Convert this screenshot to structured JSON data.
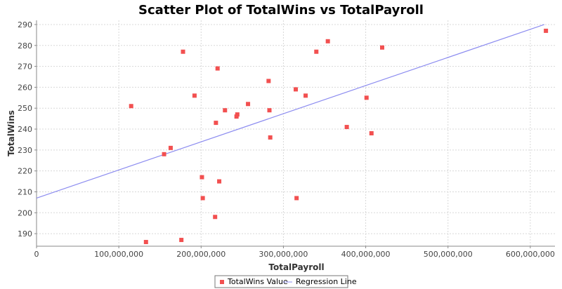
{
  "colors": {
    "points": "#f25050",
    "regression": "#8c8cf0",
    "grid": "#d8d8d8",
    "axis": "#888888"
  },
  "chart_data": {
    "type": "scatter",
    "title": "Scatter Plot of TotalWins vs TotalPayroll",
    "xlabel": "TotalPayroll",
    "ylabel": "TotalWins",
    "xlim": [
      0,
      630000000
    ],
    "ylim": [
      184,
      292
    ],
    "grid": true,
    "legend_placement": "bottom-center",
    "x_ticks": [
      {
        "value": 0,
        "label": "0"
      },
      {
        "value": 100000000,
        "label": "100,000,000"
      },
      {
        "value": 200000000,
        "label": "200,000,000"
      },
      {
        "value": 300000000,
        "label": "300,000,000"
      },
      {
        "value": 400000000,
        "label": "400,000,000"
      },
      {
        "value": 500000000,
        "label": "500,000,000"
      },
      {
        "value": 600000000,
        "label": "600,000,000"
      }
    ],
    "y_ticks": [
      {
        "value": 190,
        "label": "190"
      },
      {
        "value": 200,
        "label": "200"
      },
      {
        "value": 210,
        "label": "210"
      },
      {
        "value": 220,
        "label": "220"
      },
      {
        "value": 230,
        "label": "230"
      },
      {
        "value": 240,
        "label": "240"
      },
      {
        "value": 250,
        "label": "250"
      },
      {
        "value": 260,
        "label": "260"
      },
      {
        "value": 270,
        "label": "270"
      },
      {
        "value": 280,
        "label": "280"
      },
      {
        "value": 290,
        "label": "290"
      }
    ],
    "series": [
      {
        "name": "TotalWins Value",
        "kind": "points",
        "x": [
          115000000,
          133000000,
          155000000,
          163000000,
          176000000,
          178000000,
          192000000,
          201000000,
          202000000,
          217000000,
          218000000,
          220000000,
          222000000,
          229000000,
          243000000,
          244000000,
          257000000,
          282000000,
          283000000,
          284000000,
          315000000,
          316000000,
          327000000,
          340000000,
          354000000,
          377000000,
          401000000,
          407000000,
          420000000,
          619000000
        ],
        "y": [
          251,
          186,
          228,
          231,
          187,
          277,
          256,
          217,
          207,
          198,
          243,
          269,
          215,
          249,
          246,
          247,
          252,
          263,
          249,
          236,
          259,
          207,
          256,
          277,
          282,
          241,
          255,
          238,
          279,
          287
        ]
      },
      {
        "name": "Regression Line",
        "kind": "line",
        "x": [
          0,
          617000000
        ],
        "y": [
          207,
          290
        ]
      }
    ]
  }
}
